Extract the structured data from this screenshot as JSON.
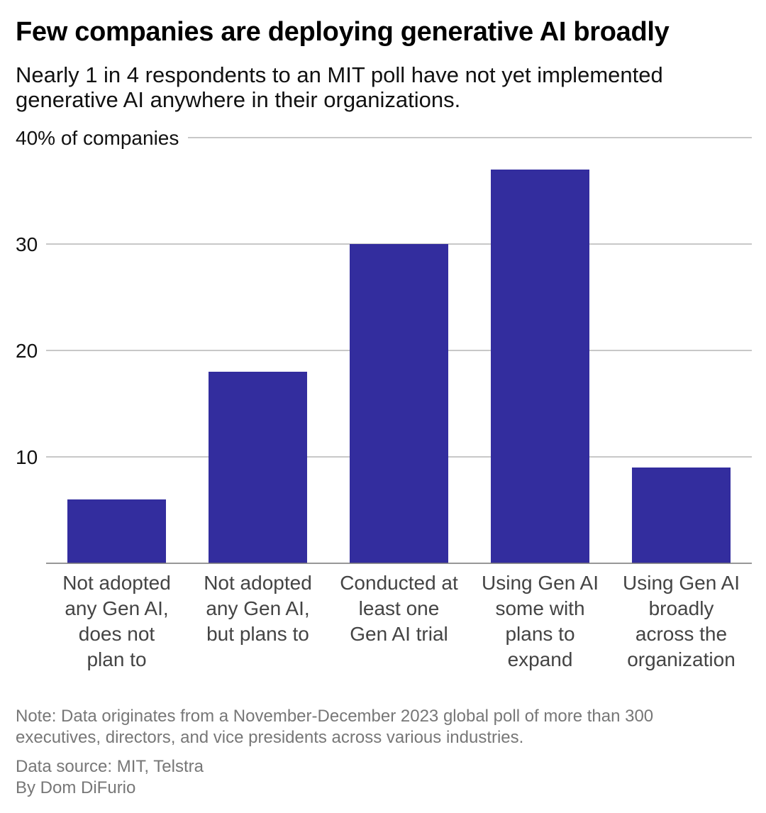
{
  "title": "Few companies are deploying generative AI broadly",
  "subtitle_lines": [
    "Nearly 1 in 4 respondents to an MIT poll have not yet implemented",
    "generative AI anywhere in their organizations."
  ],
  "note_lines": [
    "Note: Data originates from a November-December 2023 global poll of more than 300",
    "executives, directors, and vice presidents across various industries."
  ],
  "source": "Data source: MIT, Telstra",
  "byline": "By Dom DiFurio",
  "colors": {
    "bar": "#332D9E",
    "grid": "#B5B5B5",
    "axis": "#777777"
  },
  "chart_data": {
    "type": "bar",
    "categories": [
      [
        "Not adopted",
        "any Gen AI,",
        "does not",
        "plan to"
      ],
      [
        "Not adopted",
        "any Gen AI,",
        "but plans to"
      ],
      [
        "Conducted at",
        "least one",
        "Gen AI trial"
      ],
      [
        "Using Gen AI",
        "some with",
        "plans to",
        "expand"
      ],
      [
        "Using Gen AI",
        "broadly",
        "across the",
        "organization"
      ]
    ],
    "values": [
      6,
      18,
      30,
      37,
      9
    ],
    "ylim": [
      0,
      40
    ],
    "yticks": [
      10,
      20,
      30,
      40
    ],
    "ytick_labels": [
      "10",
      "20",
      "30",
      "40% of companies"
    ],
    "ylabel": "% of companies",
    "xlabel": "",
    "grid": true
  }
}
